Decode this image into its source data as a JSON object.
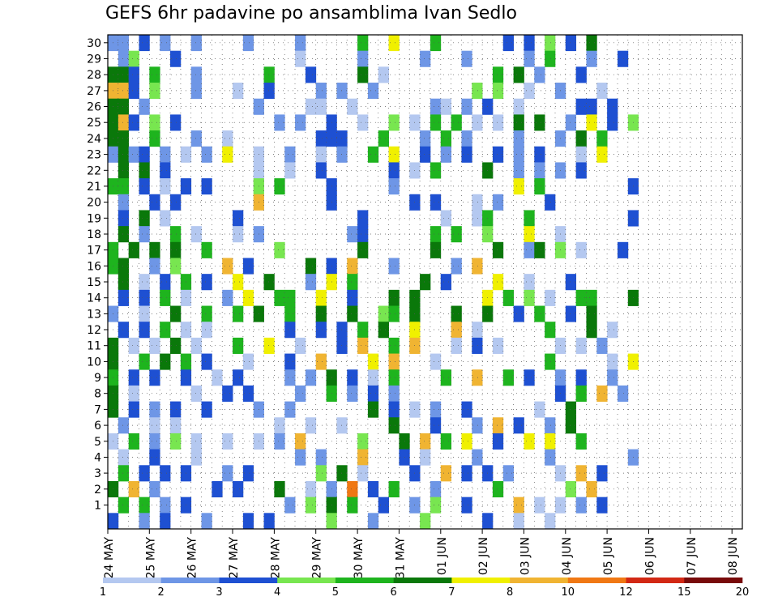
{
  "chart_data": {
    "type": "heatmap",
    "title": "GEFS 6hr padavine po ansamblima Ivan Sedlo",
    "x_ticks": [
      "24 MAY",
      "25 MAY",
      "26 MAY",
      "27 MAY",
      "28 MAY",
      "29 MAY",
      "30 MAY",
      "31 MAY",
      "01 JUN",
      "02 JUN",
      "03 JUN",
      "04 JUN",
      "05 JUN",
      "06 JUN",
      "07 JUN",
      "08 JUN"
    ],
    "y_ticks": [
      1,
      2,
      3,
      4,
      5,
      6,
      7,
      8,
      9,
      10,
      11,
      12,
      13,
      14,
      15,
      16,
      17,
      18,
      19,
      20,
      21,
      22,
      23,
      24,
      25,
      26,
      27,
      28,
      29,
      30
    ],
    "grid": true,
    "legend_position": "bottom",
    "colorbar": {
      "labels": [
        "1",
        "2",
        "3",
        "4",
        "5",
        "6",
        "7",
        "8",
        "10",
        "12",
        "15",
        "20"
      ],
      "colors": [
        "#b4c8f0",
        "#6e96e6",
        "#1e50d2",
        "#78e650",
        "#1eb41e",
        "#0a780a",
        "#f0f000",
        "#f0b432",
        "#f07814",
        "#d22814",
        "#780a0a"
      ]
    },
    "value_levels": [
      1.5,
      2.5,
      3.5,
      4.5,
      5.5,
      6.5,
      7.5,
      9,
      11,
      13.5,
      17.5,
      22
    ],
    "rows": [
      "22.3.2..2....2....2.....5..7F..5......3.3.4.3.6....",
      ".24...3...........1.....2.....2...2.....2.5...2..3.",
      "663.5...2......5...3....6.1..........5.6.2...3....",
      "883.4...2...1..3....2.2..2.........4.4..1..2...1..",
      "66.2..........2....11..1.......21.2.3..1.....33.3..",
      "683.4.3.........2.2..3..1..4.1.5.5.1.1.6.6..2.7.3.4.",
      "66..5...2..1........333...5...2.5.2....2...2.6.5...",
      "2623.2.1.2.7..1..2..1.2..5.7..3.2.3..3.2.3...1.7...",
      ".6.6.3........1..1..3......3.1.5....6..2.2.2.3.....",
      "55.3.1.3.3....4.5....3.....2...........7.5........3",
      ".2..3.3.......8......3.......3.3...1.2....3........",
      ".3.6.1......3...........3.......1..15...5.........3",
      ".6.2..5.1...1.2........23......5.5..4...7..1.......",
      "5.6.6.6..5......4.......6......6.....6..26.4.1...3..",
      "56..2.4....8.3.....6.3.8...2.....2.8...............",
      ".6.1.3.5.3..7..6...2.7.5......6.3....7..1...3......",
      ".3.3.5.1...2.7..55..7..3...6.6......7.5.4.1..55...6.",
      "2..1..6..5..5.6..5..6..6..45.6...6..6..3.5..3.6....",
      ".3.3.5.1.1.......3..3.3.5.6..7...8.1......5...6.1..",
      "6.1.1.6.1...5..7..1...3.8..5.8...1.3.1.....1.1.2..",
      "6..5.6.5.3...1...3..8....7.8...1..........5.....1.7",
      "5.3.3..3..1.3....2.2.6.3.1.5....5..8..5.3..2.3..2.",
      "6.1.....1..3.3....2..5.2.3.2...............3.5.8.2",
      "6.3.2.3..3....2..2.......6.3.1.2..3......1..6......",
      ".2..1.1.........1..1..1....6...3...2.8.3..2.6.....",
      "1.5.2.4.1..1..1.2.8.....4...6.8.5.7..3..7.7..5....",
      ".1..3...1.........2.2...8...3.1....2......2.......2",
      ".5.3.3.3...2.3......4.6.1....3..8.3.3.2....1.8.3...",
      "6.8.2.....3.3...6..1.2.9.3.5...2.....5......4.8.....",
      ".5.5.2.3.........2.4.6.5..3..2.4..3....8.1.1.2.3...",
      "3..2.3...2...3.3.....4...2....4.....3..1..1...."
    ]
  }
}
